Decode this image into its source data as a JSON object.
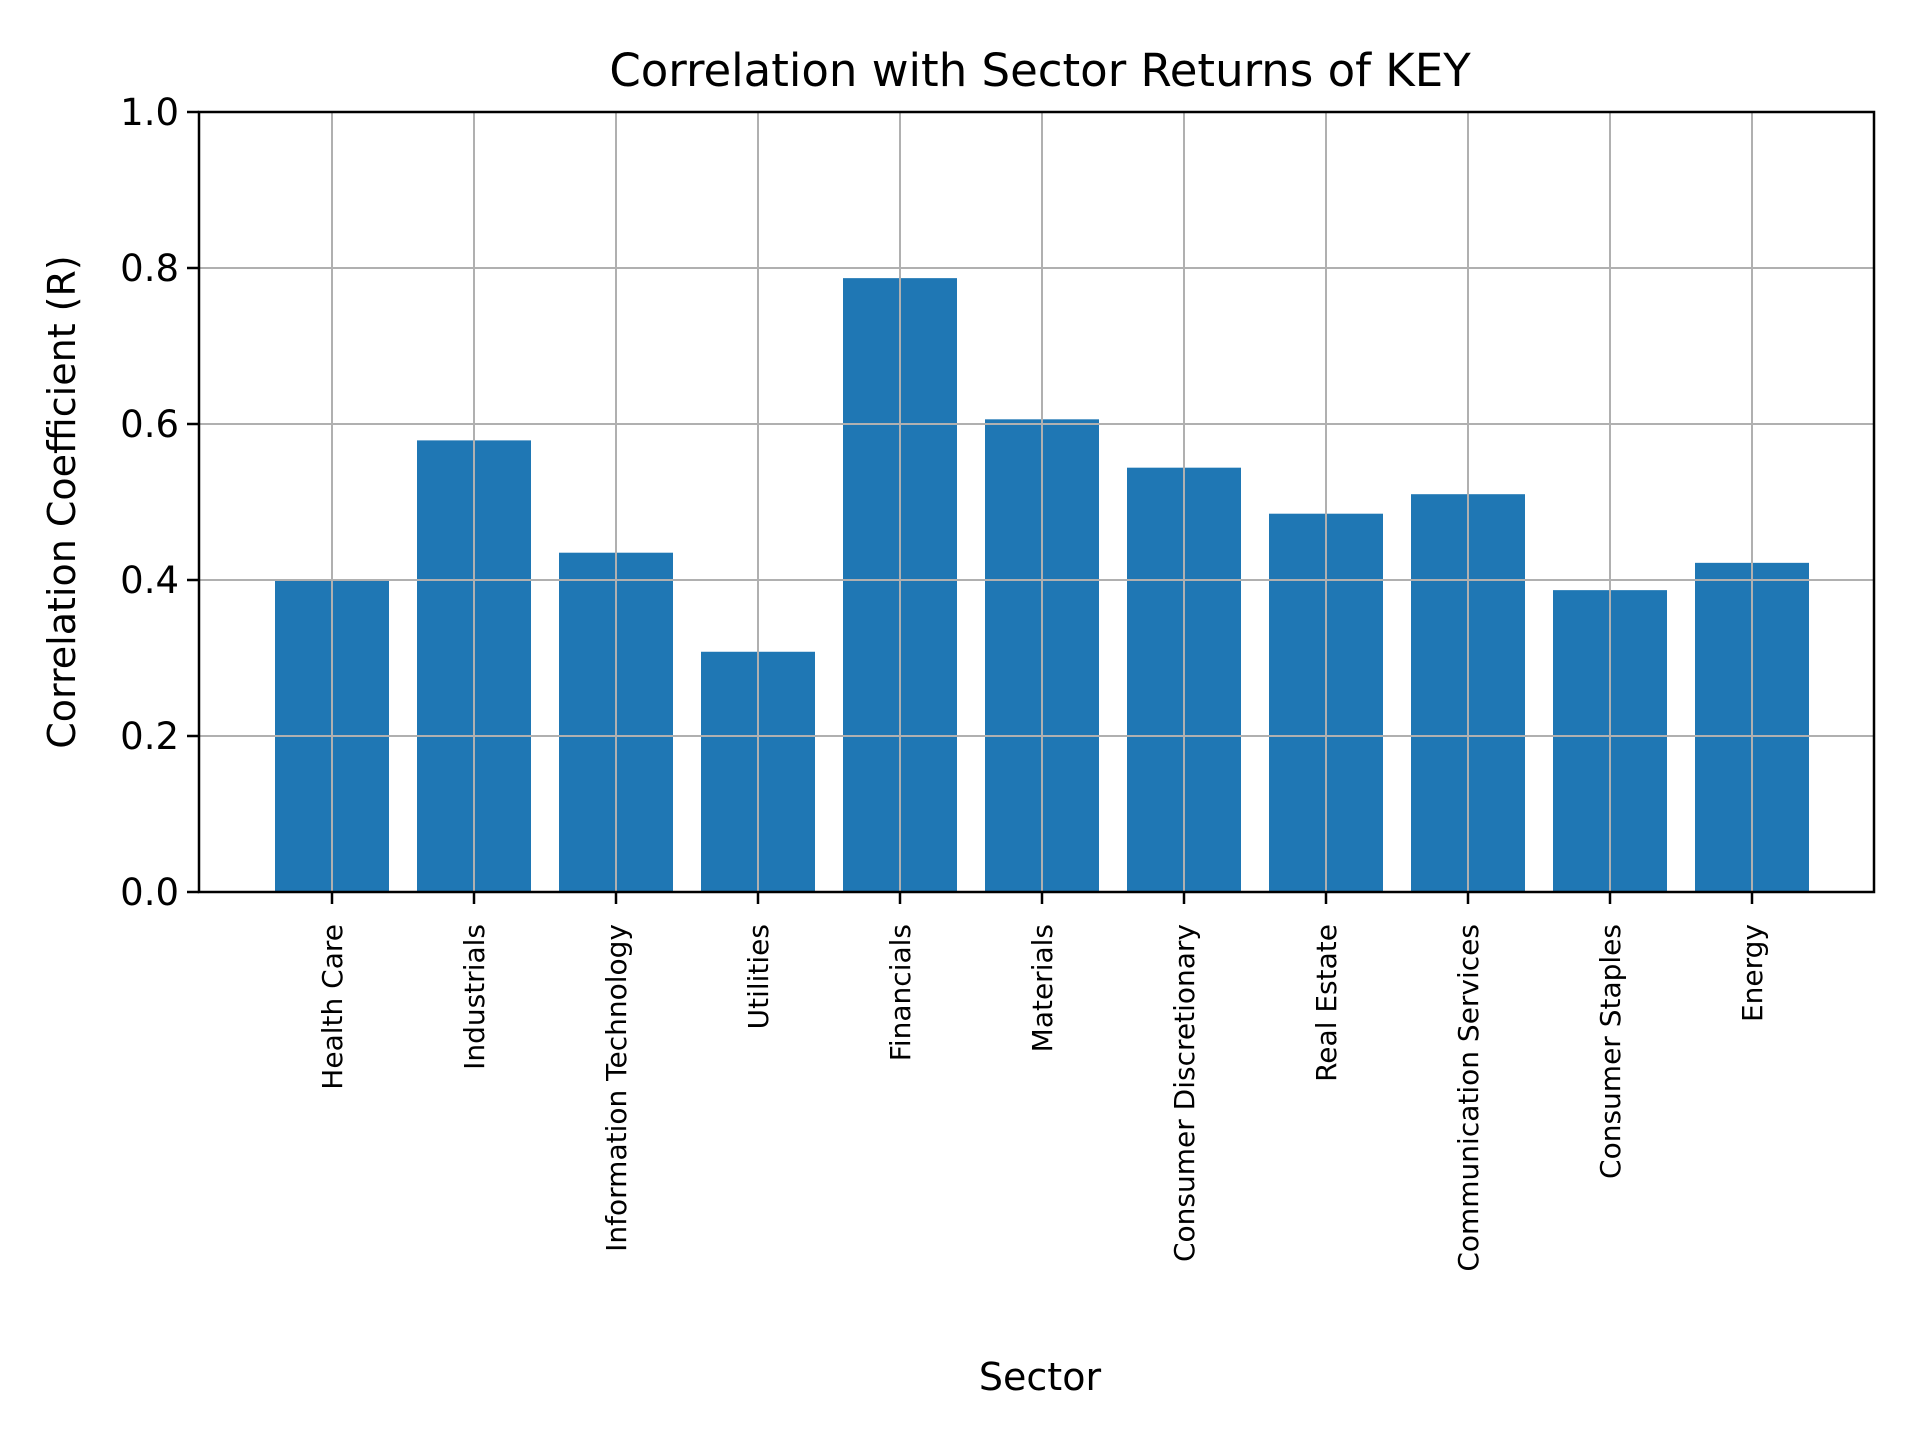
{
  "chart_data": {
    "type": "bar",
    "title": "Correlation with Sector Returns of KEY",
    "xlabel": "Sector",
    "ylabel": "Correlation Coefficient (R)",
    "categories": [
      "Health Care",
      "Industrials",
      "Information Technology",
      "Utilities",
      "Financials",
      "Materials",
      "Consumer Discretionary",
      "Real Estate",
      "Communication Services",
      "Consumer Staples",
      "Energy"
    ],
    "values": [
      0.401,
      0.579,
      0.435,
      0.308,
      0.787,
      0.606,
      0.544,
      0.485,
      0.51,
      0.387,
      0.422
    ],
    "ylim": [
      0.0,
      1.0
    ],
    "yticks": [
      "0.0",
      "0.2",
      "0.4",
      "0.6",
      "0.8",
      "1.0"
    ],
    "grid": true,
    "legend": null,
    "bar_color": "#1f77b4",
    "grid_color": "#b0b0b0"
  }
}
